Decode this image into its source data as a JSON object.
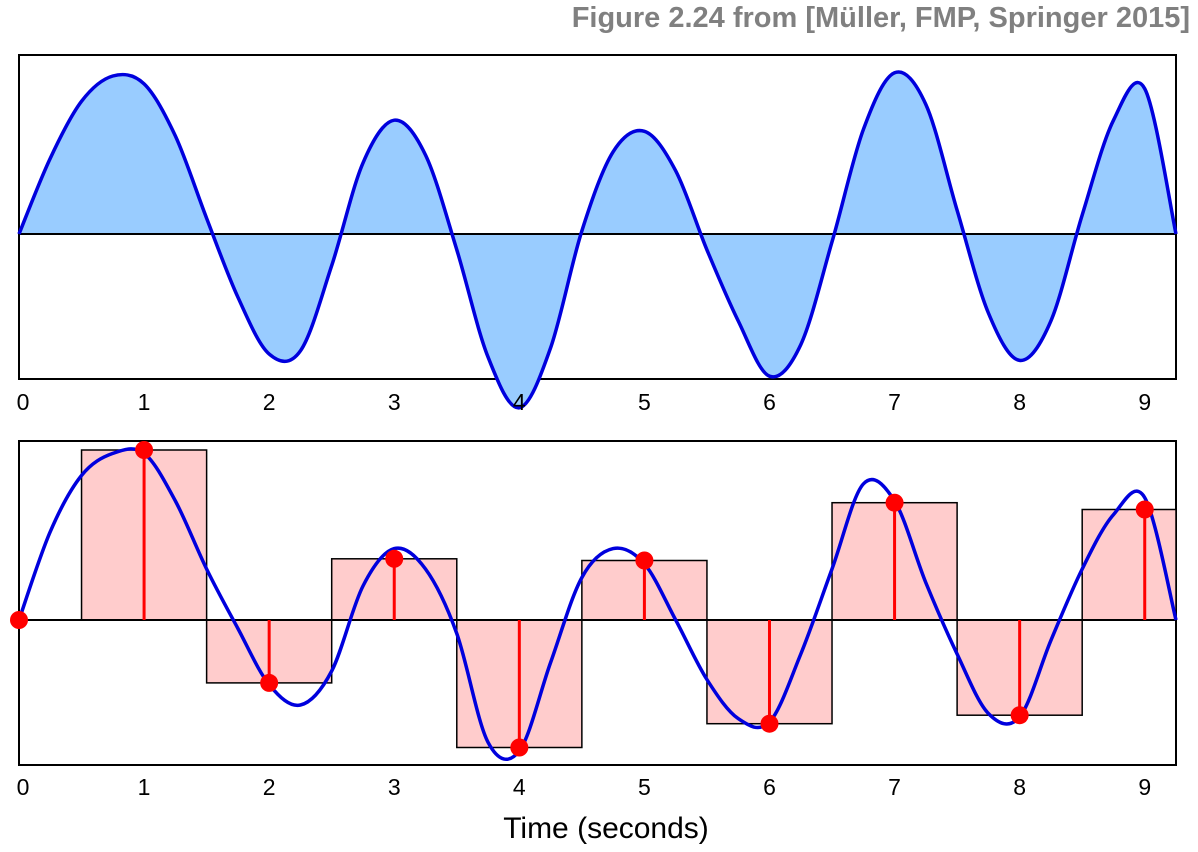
{
  "figure_title": "Figure 2.24 from [Müller, FMP, Springer 2015]",
  "colors": {
    "signal": "#0000dd",
    "fill": "#99ccff",
    "sample": "#ff0000",
    "box_fill": "#ffcccc",
    "axis": "#000000",
    "title": "#808080"
  },
  "chart_data": [
    {
      "type": "area",
      "panel": "top",
      "description_free": true,
      "x_range": [
        0,
        9.25
      ],
      "y_range": [
        -1.0,
        1.0
      ],
      "tick_labels": [
        "0",
        "1",
        "2",
        "3",
        "4",
        "5",
        "6",
        "7",
        "8",
        "9"
      ],
      "curve_x": [
        0.0,
        0.25,
        0.5,
        0.75,
        1.0,
        1.25,
        1.5,
        1.75,
        2.0,
        2.25,
        2.5,
        2.75,
        3.0,
        3.25,
        3.5,
        3.75,
        4.0,
        4.25,
        4.5,
        4.75,
        5.0,
        5.25,
        5.5,
        5.75,
        6.0,
        6.25,
        6.5,
        6.75,
        7.0,
        7.25,
        7.5,
        7.75,
        8.0,
        8.25,
        8.5,
        8.75,
        9.0,
        9.25
      ],
      "curve_y": [
        0.0,
        0.48,
        0.84,
        1.0,
        0.95,
        0.62,
        0.1,
        -0.4,
        -0.76,
        -0.74,
        -0.2,
        0.45,
        0.72,
        0.5,
        -0.1,
        -0.78,
        -1.1,
        -0.72,
        0.02,
        0.52,
        0.65,
        0.4,
        -0.1,
        -0.55,
        -0.9,
        -0.7,
        -0.05,
        0.66,
        1.02,
        0.82,
        0.15,
        -0.5,
        -0.8,
        -0.55,
        0.12,
        0.72,
        0.92,
        0.0
      ]
    },
    {
      "type": "scatter",
      "panel": "bottom",
      "x_range": [
        0,
        9.25
      ],
      "y_range": [
        -1.0,
        1.0
      ],
      "tick_labels": [
        "0",
        "1",
        "2",
        "3",
        "4",
        "5",
        "6",
        "7",
        "8",
        "9"
      ],
      "xlabel": "Time (seconds)",
      "samples_x": [
        0,
        1,
        2,
        3,
        4,
        5,
        6,
        7,
        8,
        9
      ],
      "samples_y": [
        0.0,
        1.0,
        -0.37,
        0.36,
        -0.75,
        0.35,
        -0.61,
        0.69,
        -0.56,
        0.65
      ],
      "boxes": [
        {
          "x0": 0.5,
          "x1": 1.5,
          "y": 1.0
        },
        {
          "x0": 1.5,
          "x1": 2.5,
          "y": -0.37
        },
        {
          "x0": 2.5,
          "x1": 3.5,
          "y": 0.36
        },
        {
          "x0": 3.5,
          "x1": 4.5,
          "y": -0.75
        },
        {
          "x0": 4.5,
          "x1": 5.5,
          "y": 0.35
        },
        {
          "x0": 5.5,
          "x1": 6.5,
          "y": -0.61
        },
        {
          "x0": 6.5,
          "x1": 7.5,
          "y": 0.69
        },
        {
          "x0": 7.5,
          "x1": 8.5,
          "y": -0.56
        },
        {
          "x0": 8.5,
          "x1": 9.25,
          "y": 0.65
        }
      ],
      "curve_x": [
        0.0,
        0.25,
        0.5,
        0.75,
        1.0,
        1.25,
        1.5,
        1.75,
        2.0,
        2.25,
        2.5,
        2.75,
        3.0,
        3.25,
        3.5,
        3.75,
        4.0,
        4.25,
        4.5,
        4.75,
        5.0,
        5.25,
        5.5,
        5.75,
        6.0,
        6.25,
        6.5,
        6.75,
        7.0,
        7.25,
        7.5,
        7.75,
        8.0,
        8.25,
        8.5,
        8.75,
        9.0,
        9.25
      ],
      "curve_y": [
        0.0,
        0.52,
        0.85,
        0.98,
        0.98,
        0.7,
        0.3,
        -0.05,
        -0.38,
        -0.5,
        -0.3,
        0.2,
        0.42,
        0.3,
        -0.08,
        -0.72,
        -0.77,
        -0.25,
        0.25,
        0.42,
        0.33,
        0.0,
        -0.35,
        -0.58,
        -0.6,
        -0.2,
        0.3,
        0.8,
        0.7,
        0.22,
        -0.2,
        -0.55,
        -0.57,
        -0.12,
        0.3,
        0.62,
        0.72,
        0.0
      ]
    }
  ]
}
